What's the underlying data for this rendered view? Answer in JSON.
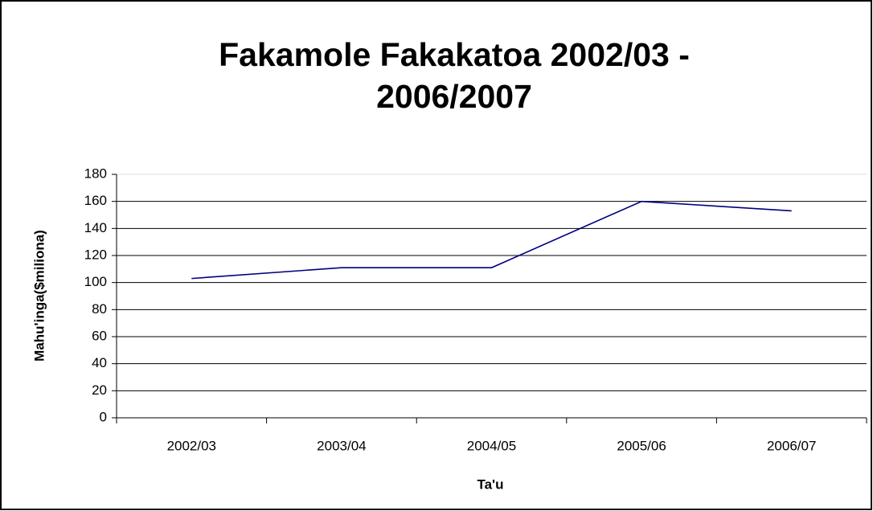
{
  "chart_data": {
    "type": "line",
    "title": "Fakamole Fakakatoa 2002/03 - 2006/2007",
    "x_label": "Ta'u",
    "y_label": "Mahu'inga($miliona)",
    "categories": [
      "2002/03",
      "2003/04",
      "2004/05",
      "2005/06",
      "2006/07"
    ],
    "series": [
      {
        "name": "Fakamole",
        "color": "#000080",
        "values": [
          103,
          111,
          111,
          160,
          153
        ]
      }
    ],
    "ylim": [
      0,
      180
    ],
    "yticks": [
      0,
      20,
      40,
      60,
      80,
      100,
      120,
      140,
      160,
      180
    ],
    "grid": true
  }
}
